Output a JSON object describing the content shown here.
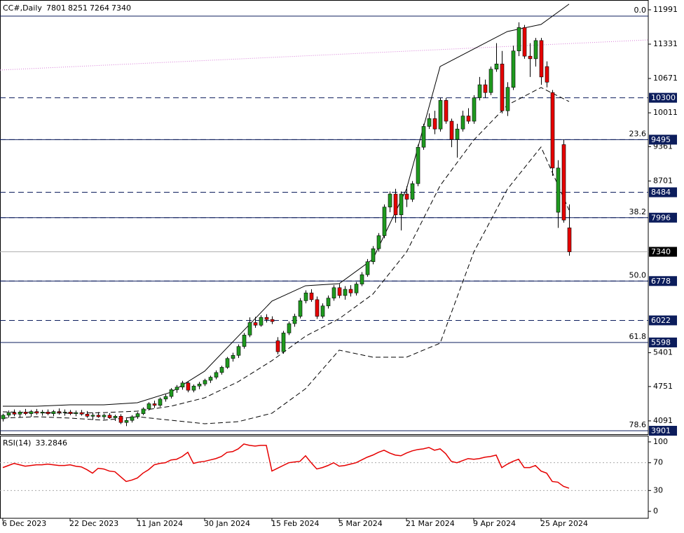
{
  "chart_data": {
    "type": "candlestick",
    "symbol": "CC#,Daily",
    "categories": [
      "6 Dec 2023",
      null,
      null,
      null,
      null,
      null,
      null,
      null,
      null,
      null,
      null,
      null,
      "22 Dec 2023",
      null,
      null,
      null,
      null,
      null,
      null,
      null,
      null,
      null,
      null,
      null,
      "11 Jan 2024",
      null,
      null,
      null,
      null,
      null,
      null,
      null,
      null,
      null,
      null,
      null,
      "30 Jan 2024",
      null,
      null,
      null,
      null,
      null,
      null,
      null,
      null,
      null,
      null,
      null,
      "15 Feb 2024",
      null,
      null,
      null,
      null,
      null,
      null,
      null,
      null,
      null,
      null,
      null,
      "5 Mar 2024",
      null,
      null,
      null,
      null,
      null,
      null,
      null,
      null,
      null,
      null,
      null,
      "21 Mar 2024",
      null,
      null,
      null,
      null,
      null,
      null,
      null,
      null,
      null,
      null,
      null,
      "9 Apr 2024",
      null,
      null,
      null,
      null,
      null,
      null,
      null,
      null,
      null,
      null,
      null,
      "25 Apr 2024",
      null,
      null,
      null,
      null,
      null
    ],
    "ohlc": [
      [
        4130,
        4230,
        4080,
        4200
      ],
      [
        4200,
        4290,
        4150,
        4250
      ],
      [
        4250,
        4310,
        4180,
        4220
      ],
      [
        4220,
        4290,
        4160,
        4260
      ],
      [
        4260,
        4320,
        4200,
        4230
      ],
      [
        4230,
        4300,
        4170,
        4270
      ],
      [
        4270,
        4320,
        4210,
        4240
      ],
      [
        4240,
        4300,
        4190,
        4260
      ],
      [
        4260,
        4310,
        4200,
        4230
      ],
      [
        4230,
        4300,
        4180,
        4270
      ],
      [
        4270,
        4330,
        4210,
        4250
      ],
      [
        4250,
        4310,
        4190,
        4260
      ],
      [
        4260,
        4300,
        4200,
        4230
      ],
      [
        4230,
        4290,
        4180,
        4250
      ],
      [
        4250,
        4300,
        4190,
        4220
      ],
      [
        4220,
        4280,
        4150,
        4180
      ],
      [
        4180,
        4250,
        4110,
        4200
      ],
      [
        4200,
        4260,
        4150,
        4170
      ],
      [
        4170,
        4230,
        4120,
        4200
      ],
      [
        4200,
        4240,
        4130,
        4150
      ],
      [
        4150,
        4210,
        4090,
        4180
      ],
      [
        4180,
        4220,
        4030,
        4060
      ],
      [
        4060,
        4140,
        3990,
        4100
      ],
      [
        4100,
        4200,
        4060,
        4170
      ],
      [
        4170,
        4260,
        4130,
        4230
      ],
      [
        4230,
        4350,
        4200,
        4320
      ],
      [
        4320,
        4450,
        4290,
        4420
      ],
      [
        4420,
        4480,
        4340,
        4390
      ],
      [
        4390,
        4540,
        4360,
        4510
      ],
      [
        4510,
        4600,
        4460,
        4560
      ],
      [
        4560,
        4720,
        4520,
        4690
      ],
      [
        4690,
        4780,
        4630,
        4740
      ],
      [
        4740,
        4860,
        4690,
        4820
      ],
      [
        4820,
        4850,
        4640,
        4680
      ],
      [
        4680,
        4790,
        4640,
        4760
      ],
      [
        4760,
        4840,
        4700,
        4800
      ],
      [
        4800,
        4900,
        4760,
        4870
      ],
      [
        4870,
        4960,
        4820,
        4930
      ],
      [
        4930,
        5060,
        4890,
        5020
      ],
      [
        5020,
        5150,
        4980,
        5120
      ],
      [
        5120,
        5320,
        5090,
        5290
      ],
      [
        5290,
        5400,
        5230,
        5350
      ],
      [
        5350,
        5560,
        5300,
        5520
      ],
      [
        5520,
        5780,
        5480,
        5740
      ],
      [
        5740,
        6080,
        5700,
        5980
      ],
      [
        5980,
        6090,
        5880,
        5930
      ],
      [
        5930,
        6120,
        5900,
        6080
      ],
      [
        6080,
        6140,
        5980,
        6040
      ],
      [
        6040,
        6100,
        5950,
        6000
      ],
      [
        5630,
        5700,
        5370,
        5420
      ],
      [
        5420,
        5820,
        5380,
        5780
      ],
      [
        5780,
        6000,
        5740,
        5960
      ],
      [
        5960,
        6150,
        5900,
        6100
      ],
      [
        6100,
        6450,
        6060,
        6400
      ],
      [
        6400,
        6600,
        6350,
        6550
      ],
      [
        6550,
        6620,
        6380,
        6420
      ],
      [
        6420,
        6480,
        6050,
        6100
      ],
      [
        6100,
        6350,
        6060,
        6300
      ],
      [
        6300,
        6500,
        6250,
        6450
      ],
      [
        6450,
        6700,
        6400,
        6650
      ],
      [
        6650,
        6720,
        6450,
        6500
      ],
      [
        6500,
        6680,
        6420,
        6620
      ],
      [
        6620,
        6700,
        6480,
        6550
      ],
      [
        6550,
        6760,
        6500,
        6720
      ],
      [
        6720,
        6950,
        6680,
        6900
      ],
      [
        6900,
        7200,
        6860,
        7150
      ],
      [
        7150,
        7450,
        7100,
        7400
      ],
      [
        7400,
        7700,
        7350,
        7650
      ],
      [
        7650,
        8250,
        7600,
        8200
      ],
      [
        8200,
        8500,
        8100,
        8450
      ],
      [
        8450,
        8550,
        7900,
        8050
      ],
      [
        8050,
        8500,
        7750,
        8450
      ],
      [
        8450,
        8600,
        8200,
        8350
      ],
      [
        8350,
        8700,
        8300,
        8650
      ],
      [
        8650,
        9400,
        8600,
        9350
      ],
      [
        9350,
        9800,
        9300,
        9750
      ],
      [
        9750,
        10000,
        9700,
        9900
      ],
      [
        9900,
        10050,
        9600,
        9700
      ],
      [
        9700,
        10300,
        9650,
        10250
      ],
      [
        10250,
        10300,
        9800,
        9850
      ],
      [
        9850,
        9900,
        9350,
        9500
      ],
      [
        9500,
        9800,
        9150,
        9700
      ],
      [
        9700,
        10050,
        9650,
        9950
      ],
      [
        9950,
        10100,
        9800,
        9850
      ],
      [
        9850,
        10350,
        9800,
        10300
      ],
      [
        10300,
        10700,
        10250,
        10550
      ],
      [
        10550,
        10650,
        10300,
        10400
      ],
      [
        10400,
        10900,
        10350,
        10850
      ],
      [
        10850,
        11350,
        10800,
        10950
      ],
      [
        10950,
        11200,
        10000,
        10050
      ],
      [
        10050,
        10600,
        9950,
        10500
      ],
      [
        10500,
        11300,
        10450,
        11200
      ],
      [
        11200,
        11750,
        11100,
        11650
      ],
      [
        11650,
        11700,
        11050,
        11100
      ],
      [
        11100,
        11350,
        10700,
        11050
      ],
      [
        11050,
        11450,
        10900,
        11400
      ],
      [
        11400,
        11450,
        10550,
        10700
      ],
      [
        10900,
        11000,
        10500,
        10600
      ],
      [
        10400,
        10450,
        8800,
        8950
      ],
      [
        8100,
        9100,
        7800,
        8950
      ],
      [
        9400,
        9500,
        7900,
        7950
      ],
      [
        7801,
        8251,
        7264,
        7340
      ]
    ],
    "up_color": "#1f9a1f",
    "down_color": "#e60000",
    "ylim": [
      3834,
      12179
    ],
    "yticks": [
      4091,
      4751,
      5401,
      8701,
      9361,
      10011,
      10671,
      11331,
      11991
    ],
    "bands": {
      "x": [
        0,
        6,
        12,
        18,
        24,
        30,
        36,
        42,
        48,
        54,
        60,
        66,
        72,
        78,
        84,
        90,
        96,
        101
      ],
      "upper": [
        4373,
        4373,
        4400,
        4400,
        4440,
        4642,
        5046,
        5719,
        6392,
        6688,
        6728,
        7199,
        8545,
        10901,
        11237,
        11574,
        11709,
        12100
      ],
      "middle": [
        4265,
        4250,
        4238,
        4250,
        4278,
        4373,
        4534,
        4844,
        5248,
        5719,
        6055,
        6526,
        7334,
        8612,
        9487,
        10160,
        10497,
        10228
      ],
      "lower": [
        4144,
        4171,
        4144,
        4103,
        4171,
        4103,
        4036,
        4076,
        4238,
        4709,
        5450,
        5315,
        5315,
        5584,
        7334,
        8545,
        9353,
        8142
      ]
    },
    "trendline": {
      "x": [
        -0.5,
        115.1
      ],
      "values": [
        10833,
        11412
      ],
      "color": "#d67ad6"
    },
    "fib": [
      {
        "value": 11870,
        "label": "0.0"
      },
      {
        "value": 9495,
        "label": "23.6"
      },
      {
        "value": 7996,
        "label": "38.2"
      },
      {
        "value": 6778,
        "label": "50.0"
      },
      {
        "value": 5598,
        "label": "61.8"
      },
      {
        "value": 3901,
        "label": "78.6"
      }
    ],
    "levels": [
      10300,
      9495,
      8484,
      7996,
      6778,
      6022,
      5598,
      3901
    ],
    "level_color": "#0c1d5c",
    "rsi": {
      "label": "RSI(14)",
      "color": "#e60000",
      "values": [
        63,
        66,
        69,
        67,
        65,
        66,
        67,
        67,
        68,
        67,
        66,
        66,
        67,
        65,
        64,
        60,
        55,
        62,
        61,
        58,
        57,
        50,
        43,
        45,
        48,
        55,
        60,
        67,
        69,
        70,
        74,
        75,
        79,
        85,
        69,
        71,
        72,
        74,
        76,
        79,
        85,
        86,
        90,
        97,
        95,
        94,
        95,
        95,
        58,
        62,
        66,
        70,
        71,
        72,
        80,
        70,
        61,
        63,
        66,
        70,
        65,
        66,
        68,
        70,
        74,
        78,
        81,
        85,
        88,
        84,
        81,
        80,
        84,
        87,
        89,
        90,
        92,
        88,
        90,
        83,
        72,
        70,
        73,
        76,
        75,
        76,
        78,
        79,
        81,
        63,
        68,
        72,
        75,
        63,
        63,
        66,
        58,
        55,
        43,
        42,
        36,
        33.2846
      ],
      "ylim": [
        -10,
        109
      ],
      "yticks": [
        0,
        30,
        70,
        100
      ]
    }
  }
}
